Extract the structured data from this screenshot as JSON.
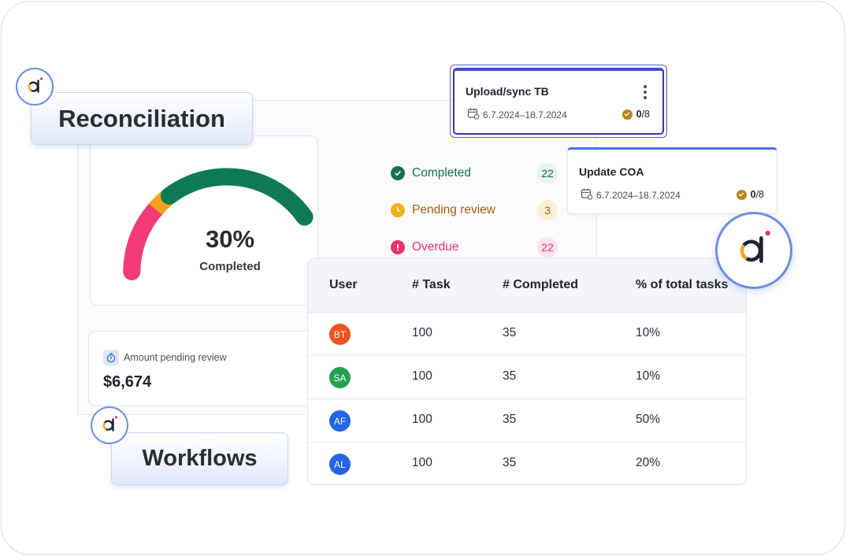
{
  "labels": {
    "reconciliation": "Reconciliation",
    "workflows": "Workflows"
  },
  "gauge": {
    "percent_text": "30%",
    "label": "Completed",
    "value_percent": 30
  },
  "legend": [
    {
      "label": "Completed",
      "count": "22",
      "color": "#14724d",
      "count_bg": "#e4f4ea",
      "icon": "check-circle-icon"
    },
    {
      "label": "Pending review",
      "count": "3",
      "color": "#a35e0b",
      "count_bg": "#fbefd7",
      "icon": "clock-icon"
    },
    {
      "label": "Overdue",
      "count": "22",
      "color": "#e8336b",
      "count_bg": "#fde3ea",
      "icon": "alert-circle-icon"
    }
  ],
  "amount": {
    "label": "Amount pending review",
    "value": "$6,674",
    "icon": "stopwatch-icon"
  },
  "table": {
    "headers": [
      "User",
      "# Task",
      "# Completed",
      "% of total tasks"
    ],
    "rows": [
      {
        "initials": "BT",
        "avatar_color": "#f0521f",
        "tasks": "100",
        "completed": "35",
        "percent": "10%"
      },
      {
        "initials": "SA",
        "avatar_color": "#23a150",
        "tasks": "100",
        "completed": "35",
        "percent": "10%"
      },
      {
        "initials": "AF",
        "avatar_color": "#2563e8",
        "tasks": "100",
        "completed": "35",
        "percent": "50%"
      },
      {
        "initials": "AL",
        "avatar_color": "#2563e8",
        "tasks": "100",
        "completed": "35",
        "percent": "20%"
      }
    ]
  },
  "tasks": [
    {
      "title": "Upload/sync TB",
      "date": "6.7.2024–18.7.2024",
      "progress_done": "0",
      "progress_total": "/8"
    },
    {
      "title": "Update COA",
      "date": "6.7.2024–18.7.2024",
      "progress_done": "0",
      "progress_total": "/8"
    }
  ],
  "colors": {
    "accent": "#3e4bd6",
    "gauge_pink": "#f33b78",
    "gauge_orange": "#f6a21d",
    "gauge_green": "#0d7a55"
  }
}
